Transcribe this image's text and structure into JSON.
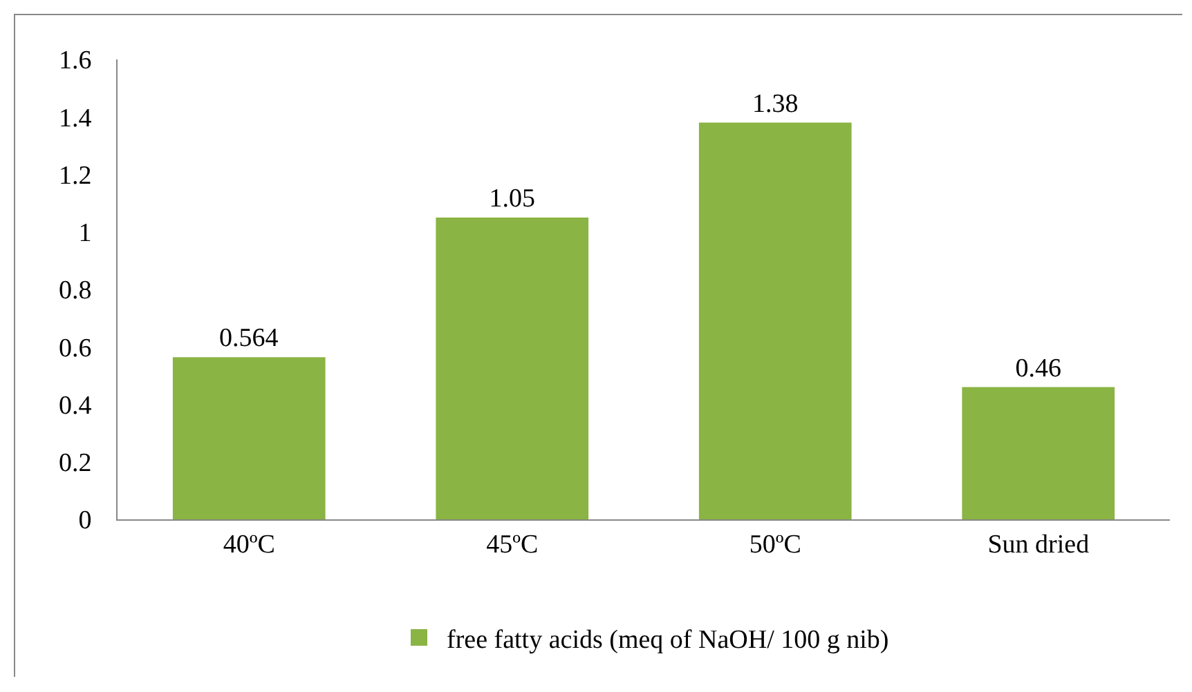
{
  "chart_data": {
    "type": "bar",
    "categories": [
      "40ºC",
      "45ºC",
      "50ºC",
      "Sun dried"
    ],
    "series": [
      {
        "name": "free fatty acids (meq of NaOH/ 100 g nib)",
        "color": "#8ab443",
        "values": [
          0.564,
          1.05,
          1.38,
          0.46
        ]
      }
    ],
    "ylim": [
      0,
      1.6
    ],
    "yticks": [
      0,
      0.2,
      0.4,
      0.6,
      0.8,
      1,
      1.2,
      1.4,
      1.6
    ],
    "grid": false,
    "legend": "bottom",
    "data_labels": true
  }
}
